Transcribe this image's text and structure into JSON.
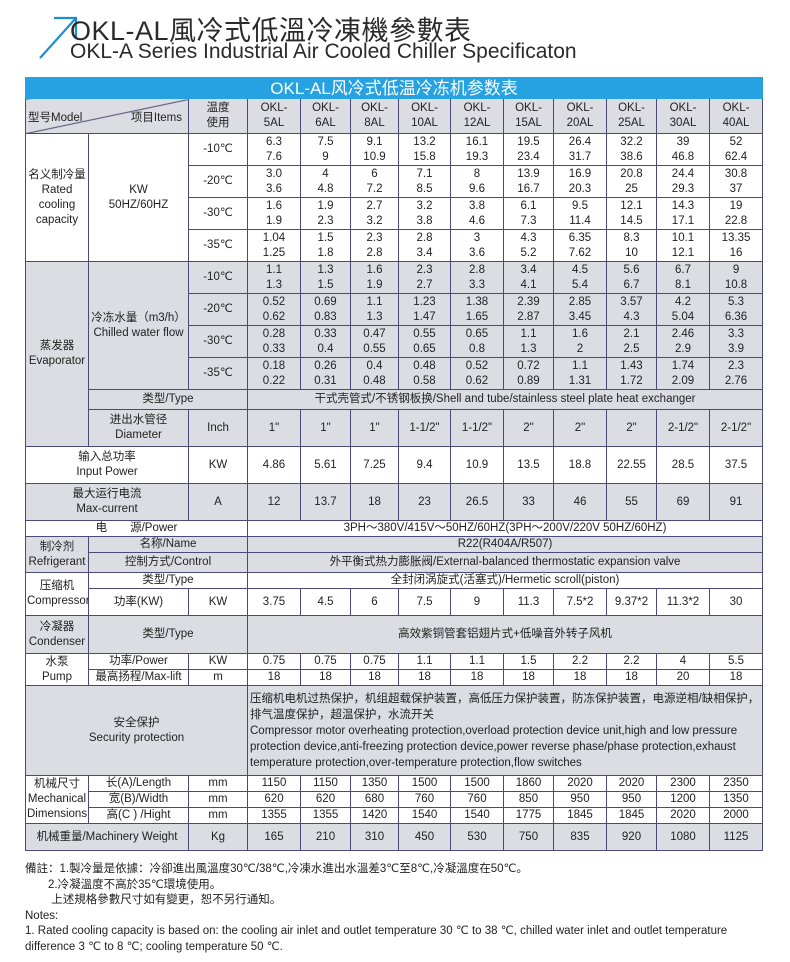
{
  "header": {
    "title_cn": "OKL-AL風冷式低溫冷凍機參數表",
    "title_en": "OKL-A Series Industrial Air Cooled Chiller Specificaton",
    "accent_color": "#26a2e2",
    "icon": "arrow-up-right-icon"
  },
  "table": {
    "title": "OKL-AL风冷式低温冷冻机参数表",
    "head": {
      "model": "型号Model",
      "items": "项目Items",
      "temp": "温度\n使用",
      "models": [
        "OKL-\n5AL",
        "OKL-\n6AL",
        "OKL-\n8AL",
        "OKL-\n10AL",
        "OKL-\n12AL",
        "OKL-\n15AL",
        "OKL-\n20AL",
        "OKL-\n25AL",
        "OKL-\n30AL",
        "OKL-\n40AL"
      ]
    },
    "capacity": {
      "label": "名义制冷量\nRated\ncooling\ncapacity",
      "unit": "KW\n50HZ/60HZ",
      "rows": [
        {
          "temp": "-10℃",
          "values": [
            "6.3\n7.6",
            "7.5\n9",
            "9.1\n10.9",
            "13.2\n15.8",
            "16.1\n19.3",
            "19.5\n23.4",
            "26.4\n31.7",
            "32.2\n38.6",
            "39\n46.8",
            "52\n62.4"
          ]
        },
        {
          "temp": "-20℃",
          "values": [
            "3.0\n3.6",
            "4\n4.8",
            "6\n7.2",
            "7.1\n8.5",
            "8\n9.6",
            "13.9\n16.7",
            "16.9\n20.3",
            "20.8\n25",
            "24.4\n29.3",
            "30.8\n37"
          ]
        },
        {
          "temp": "-30℃",
          "values": [
            "1.6\n1.9",
            "1.9\n2.3",
            "2.7\n3.2",
            "3.2\n3.8",
            "3.8\n4.6",
            "6.1\n7.3",
            "9.5\n11.4",
            "12.1\n14.5",
            "14.3\n17.1",
            "19\n22.8"
          ]
        },
        {
          "temp": "-35℃",
          "values": [
            "1.04\n1.25",
            "1.5\n1.8",
            "2.3\n2.8",
            "2.8\n3.4",
            "3\n3.6",
            "4.3\n5.2",
            "6.35\n7.62",
            "8.3\n10",
            "10.1\n12.1",
            "13.35\n16"
          ]
        }
      ]
    },
    "evaporator": {
      "label": "蒸发器\nEvaporator",
      "flow_label": "冷冻水量（m3/h）\nChilled water flow",
      "rows": [
        {
          "temp": "-10℃",
          "values": [
            "1.1\n1.3",
            "1.3\n1.5",
            "1.6\n1.9",
            "2.3\n2.7",
            "2.8\n3.3",
            "3.4\n4.1",
            "4.5\n5.4",
            "5.6\n6.7",
            "6.7\n8.1",
            "9\n10.8"
          ]
        },
        {
          "temp": "-20℃",
          "values": [
            "0.52\n0.62",
            "0.69\n0.83",
            "1.1\n1.3",
            "1.23\n1.47",
            "1.38\n1.65",
            "2.39\n2.87",
            "2.85\n3.45",
            "3.57\n4.3",
            "4.2\n5.04",
            "5.3\n6.36"
          ]
        },
        {
          "temp": "-30℃",
          "values": [
            "0.28\n0.33",
            "0.33\n0.4",
            "0.47\n0.55",
            "0.55\n0.65",
            "0.65\n0.8",
            "1.1\n1.3",
            "1.6\n2",
            "2.1\n2.5",
            "2.46\n2.9",
            "3.3\n3.9"
          ]
        },
        {
          "temp": "-35℃",
          "values": [
            "0.18\n0.22",
            "0.26\n0.31",
            "0.4\n0.48",
            "0.48\n0.58",
            "0.52\n0.62",
            "0.72\n0.89",
            "1.1\n1.31",
            "1.43\n1.72",
            "1.74\n2.09",
            "2.3\n2.76"
          ]
        }
      ],
      "type_label": "类型/Type",
      "type_value": "干式壳管式/不锈钢板换/Shell and tube/stainless steel plate heat exchanger",
      "diameter_label": "进出水管径\nDiameter",
      "diameter_unit": "Inch",
      "diameter_values": [
        "1\"",
        "1\"",
        "1\"",
        "1-1/2\"",
        "1-1/2\"",
        "2\"",
        "2\"",
        "2\"",
        "2-1/2\"",
        "2-1/2\""
      ]
    },
    "input_power": {
      "label": "输入总功率\nInput Power",
      "unit": "KW",
      "values": [
        "4.86",
        "5.61",
        "7.25",
        "9.4",
        "10.9",
        "13.5",
        "18.8",
        "22.55",
        "28.5",
        "37.5"
      ]
    },
    "max_current": {
      "label": "最大运行电流\nMax-current",
      "unit": "A",
      "values": [
        "12",
        "13.7",
        "18",
        "23",
        "26.5",
        "33",
        "46",
        "55",
        "69",
        "91"
      ]
    },
    "power": {
      "label": "电　　源/Power",
      "value": "3PH～380V/415V～50HZ/60HZ(3PH～200V/220V   50HZ/60HZ)"
    },
    "refrigerant": {
      "label": "制冷剂\nRefrigerant",
      "name_label": "名称/Name",
      "name_value": "R22(R404A/R507)",
      "control_label": "控制方式/Control",
      "control_value": "外平衡式热力膨胀阀/External-balanced thermostatic expansion valve"
    },
    "compressor": {
      "label": "压缩机\nCompressor",
      "type_label": "类型/Type",
      "type_value": "全封闭涡旋式(活塞式)/Hermetic scroll(piston)",
      "power_label": "功率(KW)",
      "power_unit": "KW",
      "power_values": [
        "3.75",
        "4.5",
        "6",
        "7.5",
        "9",
        "11.3",
        "7.5*2",
        "9.37*2",
        "11.3*2",
        "30"
      ]
    },
    "condenser": {
      "label": "冷凝器\nCondenser",
      "type_label": "类型/Type",
      "type_value": "高效紫铜管套铝翅片式+低噪音外转子风机"
    },
    "pump": {
      "label": "水泵\nPump",
      "power_label": "功率/Power",
      "power_unit": "KW",
      "power_values": [
        "0.75",
        "0.75",
        "0.75",
        "1.1",
        "1.1",
        "1.5",
        "2.2",
        "2.2",
        "4",
        "5.5"
      ],
      "lift_label": "最高扬程/Max-lift",
      "lift_unit": "m",
      "lift_values": [
        "18",
        "18",
        "18",
        "18",
        "18",
        "18",
        "18",
        "18",
        "20",
        "18"
      ]
    },
    "security": {
      "label": "安全保护\nSecurity protection",
      "text_cn": "压缩机电机过热保护，机组超载保护装置，高低压力保护装置，防冻保护装置，电源逆相/缺相保护，排气温度保护，超温保护，水流开关",
      "text_en": " Compressor motor overheating protection,overload protection device unit,high and low pressure protection device,anti-freezing protection device,power reverse phase/phase protection,exhaust temperature protection,over-temperature protection,flow switches"
    },
    "dimensions": {
      "label": "机械尺寸\nMechanical\nDimensions",
      "rows": [
        {
          "label": "长(A)/Length",
          "unit": "mm",
          "values": [
            "1150",
            "1150",
            "1350",
            "1500",
            "1500",
            "1860",
            "2020",
            "2020",
            "2300",
            "2350"
          ]
        },
        {
          "label": "宽(B)/Width",
          "unit": "mm",
          "values": [
            "620",
            "620",
            "680",
            "760",
            "760",
            "850",
            "950",
            "950",
            "1200",
            "1350"
          ]
        },
        {
          "label": "高(C ) /Hight",
          "unit": "mm",
          "values": [
            "1355",
            "1355",
            "1420",
            "1540",
            "1540",
            "1775",
            "1845",
            "1845",
            "2020",
            "2000"
          ]
        }
      ]
    },
    "weight": {
      "label": "机械重量/Machinery Weight",
      "unit": "Kg",
      "values": [
        "165",
        "210",
        "310",
        "450",
        "530",
        "750",
        "835",
        "920",
        "1080",
        "1125"
      ]
    }
  },
  "notes": [
    "備註：1.製冷量是依據：冷卻進出風溫度30℃/38℃,冷凍水進出水溫差3℃至8℃,冷凝溫度在50℃。",
    "　　2.冷凝溫度不高於35℃環境使用。",
    "　　 上述規格參數尺寸如有變更，恕不另行通知。",
    "Notes:",
    "1. Rated cooling capacity is based on: the cooling air inlet and outlet temperature 30 ℃ to 38 ℃, chilled water inlet and outlet temperature",
    "difference 3 ℃ to 8 ℃; cooling temperature 50 ℃."
  ]
}
